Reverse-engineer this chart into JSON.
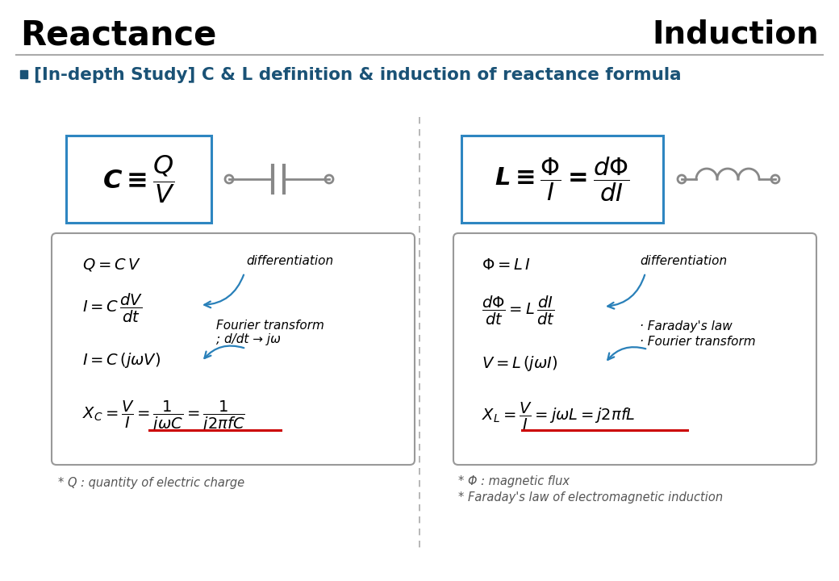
{
  "title_left": "Reactance",
  "title_right": "Induction",
  "subtitle": "[In-depth Study] C & L definition & induction of reactance formula",
  "subtitle_color": "#1a5276",
  "title_color": "#000000",
  "bg_color": "#ffffff",
  "box_color": "#2e86c1",
  "red_underline": "#cc0000",
  "arrow_color": "#2980b9",
  "gray": "#888888",
  "light_gray": "#aaaaaa",
  "watermark_color": "#d8d8d8",
  "footnote_color": "#555555"
}
